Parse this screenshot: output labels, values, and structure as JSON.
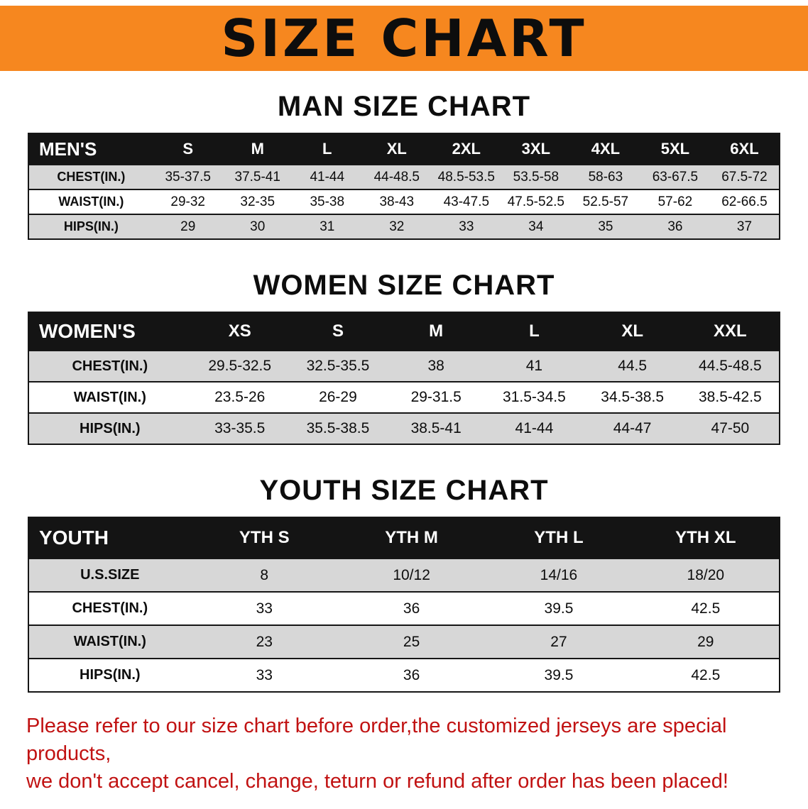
{
  "banner": {
    "title": "SIZE CHART"
  },
  "colors": {
    "banner_bg": "#f6871f",
    "table_header_bg": "#141414",
    "row_stripe_bg": "#d7d7d7",
    "footer_text": "#c11212"
  },
  "men": {
    "heading": "MAN SIZE CHART",
    "header": [
      "MEN'S",
      "S",
      "M",
      "L",
      "XL",
      "2XL",
      "3XL",
      "4XL",
      "5XL",
      "6XL"
    ],
    "rows": [
      {
        "label": "CHEST(IN.)",
        "values": [
          "35-37.5",
          "37.5-41",
          "41-44",
          "44-48.5",
          "48.5-53.5",
          "53.5-58",
          "58-63",
          "63-67.5",
          "67.5-72"
        ]
      },
      {
        "label": "WAIST(IN.)",
        "values": [
          "29-32",
          "32-35",
          "35-38",
          "38-43",
          "43-47.5",
          "47.5-52.5",
          "52.5-57",
          "57-62",
          "62-66.5"
        ]
      },
      {
        "label": "HIPS(IN.)",
        "values": [
          "29",
          "30",
          "31",
          "32",
          "33",
          "34",
          "35",
          "36",
          "37"
        ]
      }
    ]
  },
  "women": {
    "heading": "WOMEN SIZE CHART",
    "header": [
      "WOMEN'S",
      "XS",
      "S",
      "M",
      "L",
      "XL",
      "XXL"
    ],
    "rows": [
      {
        "label": "CHEST(IN.)",
        "values": [
          "29.5-32.5",
          "32.5-35.5",
          "38",
          "41",
          "44.5",
          "44.5-48.5"
        ]
      },
      {
        "label": "WAIST(IN.)",
        "values": [
          "23.5-26",
          "26-29",
          "29-31.5",
          "31.5-34.5",
          "34.5-38.5",
          "38.5-42.5"
        ]
      },
      {
        "label": "HIPS(IN.)",
        "values": [
          "33-35.5",
          "35.5-38.5",
          "38.5-41",
          "41-44",
          "44-47",
          "47-50"
        ]
      }
    ]
  },
  "youth": {
    "heading": "YOUTH SIZE CHART",
    "header": [
      "YOUTH",
      "YTH S",
      "YTH M",
      "YTH L",
      "YTH XL"
    ],
    "rows": [
      {
        "label": "U.S.SIZE",
        "values": [
          "8",
          "10/12",
          "14/16",
          "18/20"
        ]
      },
      {
        "label": "CHEST(IN.)",
        "values": [
          "33",
          "36",
          "39.5",
          "42.5"
        ]
      },
      {
        "label": "WAIST(IN.)",
        "values": [
          "23",
          "25",
          "27",
          "29"
        ]
      },
      {
        "label": "HIPS(IN.)",
        "values": [
          "33",
          "36",
          "39.5",
          "42.5"
        ]
      }
    ]
  },
  "footer": {
    "line1": "Please refer to our size chart before order,the customized jerseys are special products,",
    "line2": "we don't accept cancel, change, teturn or refund after order has been placed!"
  }
}
